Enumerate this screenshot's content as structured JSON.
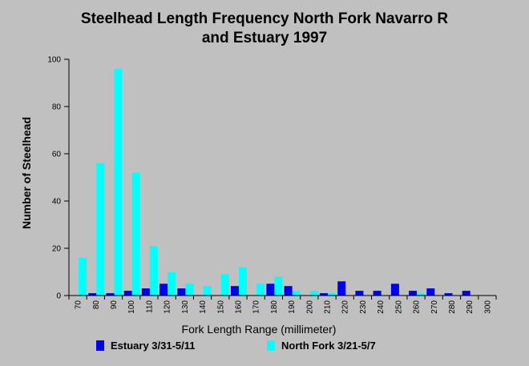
{
  "chart_data": {
    "type": "bar",
    "title_lines": [
      "Steelhead Length Frequency North Fork Navarro R",
      "and Estuary 1997"
    ],
    "xlabel": "Fork Length Range (millimeter)",
    "ylabel": "Number of Steelhead",
    "ylim": [
      0,
      100
    ],
    "yticks": [
      0,
      20,
      40,
      60,
      80,
      100
    ],
    "grid": false,
    "legend_position": "bottom",
    "categories": [
      "70",
      "80",
      "90",
      "100",
      "110",
      "120",
      "130",
      "140",
      "150",
      "160",
      "170",
      "180",
      "190",
      "200",
      "210",
      "220",
      "230",
      "240",
      "250",
      "260",
      "270",
      "280",
      "290",
      "300"
    ],
    "series": [
      {
        "name": "Estuary 3/31-5/11",
        "color": "#0000ee",
        "values": [
          0,
          1,
          1,
          2,
          3,
          5,
          3,
          0,
          0,
          4,
          0,
          5,
          4,
          0,
          1,
          6,
          2,
          2,
          5,
          2,
          3,
          1,
          2,
          0
        ]
      },
      {
        "name": "North Fork 3/21-5/7",
        "color": "#00ffff",
        "values": [
          16,
          56,
          96,
          52,
          21,
          10,
          5,
          4,
          9,
          12,
          5,
          8,
          2,
          2,
          1,
          0,
          0,
          0,
          0,
          1,
          0,
          0,
          0,
          0
        ]
      }
    ]
  }
}
